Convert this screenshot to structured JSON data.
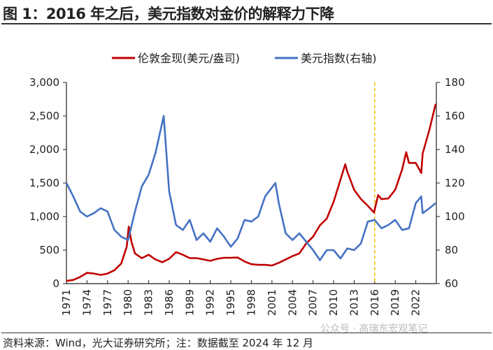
{
  "title": "图 1：2016 年之后，美元指数对金价的解释力下降",
  "source": "资料来源：Wind，光大证券研究所；注：数据截至 2024 年 12 月",
  "watermark": "公众号 · 高瑞东宏观笔记",
  "chart_data": {
    "type": "line",
    "title": "",
    "xlabel": "",
    "ylabel": "",
    "x_ticks": [
      "1971",
      "1974",
      "1977",
      "1980",
      "1983",
      "1986",
      "1989",
      "1992",
      "1995",
      "1998",
      "2001",
      "2004",
      "2007",
      "2010",
      "2013",
      "2016",
      "2019",
      "2022"
    ],
    "xlim": [
      1971,
      2025
    ],
    "ylim_left": [
      0,
      3000
    ],
    "ylim_right": [
      60,
      180
    ],
    "y_ticks_left": [
      "0",
      "500",
      "1,000",
      "1,500",
      "2,000",
      "2,500",
      "3,000"
    ],
    "y_ticks_right": [
      "60",
      "80",
      "100",
      "120",
      "140",
      "160",
      "180"
    ],
    "legend_position": "top",
    "grid": false,
    "vline": {
      "x": 2016,
      "color": "#f2c200",
      "style": "dashed"
    },
    "series": [
      {
        "name": "伦敦金现(美元/盎司)",
        "axis": "left",
        "color": "#c00000",
        "x": [
          1971,
          1972,
          1973,
          1974,
          1975,
          1976,
          1977,
          1978,
          1979,
          1979.8,
          1980.1,
          1980.5,
          1981,
          1982,
          1983,
          1984,
          1985,
          1986,
          1987,
          1988,
          1989,
          1990,
          1991,
          1992,
          1993,
          1994,
          1995,
          1996,
          1997,
          1998,
          1999,
          2000,
          2001,
          2002,
          2003,
          2004,
          2005,
          2006,
          2007,
          2008,
          2009,
          2010,
          2011,
          2011.7,
          2012,
          2013,
          2014,
          2015,
          2015.9,
          2016.5,
          2017,
          2018,
          2019,
          2020,
          2020.6,
          2021,
          2022,
          2022.8,
          2023,
          2024,
          2024.9
        ],
        "values": [
          40,
          55,
          100,
          160,
          150,
          130,
          150,
          200,
          300,
          550,
          850,
          620,
          450,
          380,
          430,
          360,
          320,
          370,
          470,
          430,
          380,
          380,
          360,
          340,
          370,
          385,
          385,
          390,
          330,
          290,
          280,
          280,
          270,
          310,
          360,
          410,
          450,
          600,
          700,
          870,
          970,
          1220,
          1550,
          1780,
          1670,
          1400,
          1260,
          1160,
          1060,
          1320,
          1260,
          1270,
          1400,
          1700,
          1960,
          1800,
          1800,
          1650,
          1940,
          2300,
          2680
        ]
      },
      {
        "name": "美元指数(右轴)",
        "axis": "right",
        "color": "#4472c4",
        "x": [
          1971,
          1972,
          1973,
          1974,
          1975,
          1976,
          1977,
          1978,
          1979,
          1980,
          1981,
          1982,
          1983,
          1984,
          1985.2,
          1986,
          1987,
          1988,
          1989,
          1990,
          1991,
          1992,
          1993,
          1994,
          1995,
          1996,
          1997,
          1998,
          1999,
          2000,
          2001.5,
          2002,
          2003,
          2004,
          2005,
          2006,
          2007,
          2008,
          2009,
          2010,
          2011,
          2012,
          2013,
          2014,
          2015,
          2016,
          2017,
          2018,
          2019,
          2020,
          2021,
          2022,
          2022.8,
          2023,
          2024,
          2024.9
        ],
        "values": [
          120,
          112,
          103,
          100,
          102,
          105,
          103,
          92,
          88,
          86,
          103,
          118,
          125,
          138,
          160,
          115,
          95,
          92,
          98,
          86,
          90,
          85,
          93,
          88,
          82,
          87,
          98,
          97,
          100,
          112,
          120,
          108,
          90,
          86,
          90,
          85,
          80,
          74,
          80,
          80,
          75,
          81,
          80,
          84,
          97,
          98,
          93,
          95,
          98,
          92,
          93,
          108,
          112,
          102,
          105,
          108
        ]
      }
    ]
  }
}
